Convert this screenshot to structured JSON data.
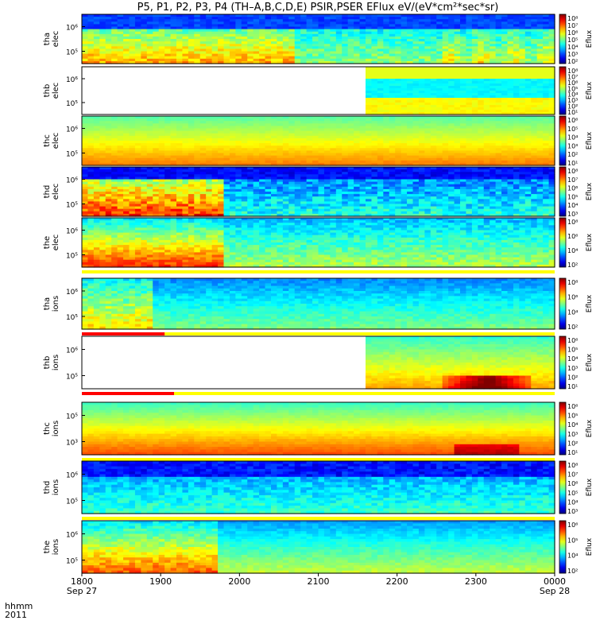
{
  "title": "P5, P1, P2, P3, P4 (TH–A,B,C,D,E) PSIR,PSER EFlux eV/(eV*cm²*sec*sr)",
  "time_axis": {
    "ticks": [
      {
        "label": "1800",
        "sub": "Sep 27"
      },
      {
        "label": "1900",
        "sub": ""
      },
      {
        "label": "2000",
        "sub": ""
      },
      {
        "label": "2100",
        "sub": ""
      },
      {
        "label": "2200",
        "sub": ""
      },
      {
        "label": "2300",
        "sub": ""
      },
      {
        "label": "0000",
        "sub": "Sep 28"
      }
    ],
    "label_top": "hhmm",
    "label_bottom": "2011"
  },
  "chart_data": {
    "type": "heatmap",
    "x_range": [
      "2011-09-27 18:00",
      "2011-09-28 00:00"
    ],
    "colorbar_label": "Eflux",
    "panels": [
      {
        "name": "tha elec",
        "yticks": [
          "10⁶",
          "10⁵"
        ],
        "cbticks": [
          "10⁸",
          "10⁷",
          "10⁶",
          "10⁵",
          "10⁴",
          "10³",
          "10²"
        ],
        "style": "elec_a",
        "flag": false
      },
      {
        "name": "thb elec",
        "yticks": [
          "10⁶",
          "10⁵"
        ],
        "cbticks": [
          "10⁸",
          "10⁷",
          "10⁶",
          "10⁵",
          "10⁴",
          "10³",
          "10²",
          "10¹"
        ],
        "style": "elec_b",
        "flag": false
      },
      {
        "name": "thc elec",
        "yticks": [
          "10⁶",
          "10⁵"
        ],
        "cbticks": [
          "10⁶",
          "10⁵",
          "10⁴",
          "10³",
          "10²",
          "10¹"
        ],
        "style": "elec_c",
        "flag": false
      },
      {
        "name": "thd elec",
        "yticks": [
          "10⁶",
          "10⁵"
        ],
        "cbticks": [
          "10⁸",
          "10⁷",
          "10⁶",
          "10⁵",
          "10⁴",
          "10³"
        ],
        "style": "elec_d",
        "flag": false
      },
      {
        "name": "the elec",
        "yticks": [
          "10⁶",
          "10⁵"
        ],
        "cbticks": [
          "10⁸",
          "10⁶",
          "10⁴",
          "10²"
        ],
        "style": "elec_e",
        "flag": true,
        "flag_red_end": 0
      },
      {
        "name": "tha ions",
        "yticks": [
          "10⁶",
          "10⁵"
        ],
        "cbticks": [
          "10⁸",
          "10⁶",
          "10⁴",
          "10²"
        ],
        "style": "ions_a",
        "flag": true,
        "flag_red_end": 0.175
      },
      {
        "name": "thb ions",
        "yticks": [
          "10⁶",
          "10⁵"
        ],
        "cbticks": [
          "10⁶",
          "10⁵",
          "10⁴",
          "10³",
          "10²",
          "10¹"
        ],
        "style": "ions_b",
        "flag": true,
        "flag_red_end": 0.195
      },
      {
        "name": "thc ions",
        "yticks": [
          "10⁵",
          "10³"
        ],
        "cbticks": [
          "10⁶",
          "10⁵",
          "10⁴",
          "10³",
          "10²",
          "10¹"
        ],
        "style": "ions_c",
        "flag": true,
        "flag_red_end": 0
      },
      {
        "name": "thd ions",
        "yticks": [
          "10⁶",
          "10⁵"
        ],
        "cbticks": [
          "10⁸",
          "10⁷",
          "10⁶",
          "10⁵",
          "10⁴",
          "10³"
        ],
        "style": "ions_d",
        "flag": true,
        "flag_red_end": 0
      },
      {
        "name": "the ions",
        "yticks": [
          "10⁶",
          "10⁵"
        ],
        "cbticks": [
          "10⁶",
          "10⁵",
          "10⁴",
          "10²"
        ],
        "style": "ions_e",
        "flag": false
      }
    ]
  }
}
